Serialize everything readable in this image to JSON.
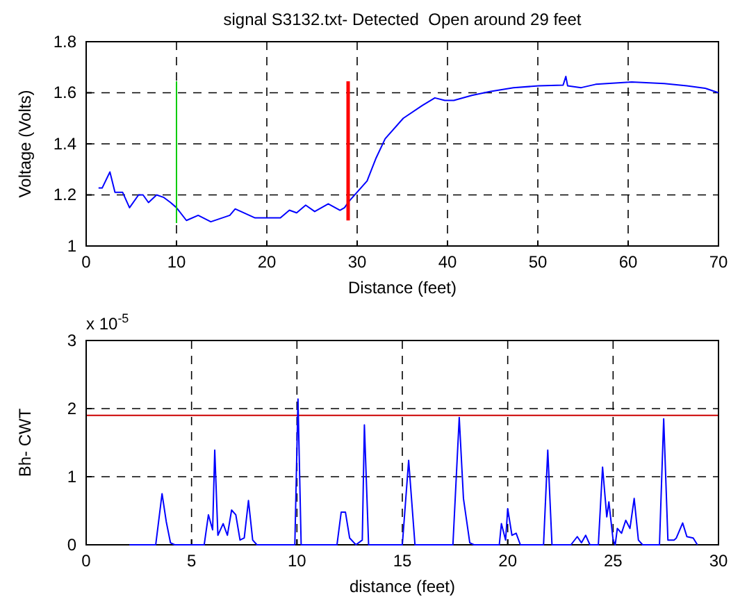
{
  "chart_data": [
    {
      "type": "line",
      "title": "signal S3132.txt- Detected  Open around 29 feet",
      "xlabel": "Distance (feet)",
      "ylabel": "Voltage (Volts)",
      "xlim": [
        0,
        70
      ],
      "xticks": [
        0,
        10,
        20,
        30,
        40,
        50,
        60,
        70
      ],
      "ylim": [
        1,
        1.8
      ],
      "yticks": [
        1,
        1.2,
        1.4,
        1.6,
        1.8
      ],
      "grid": true,
      "line_style": "solid",
      "series": [
        {
          "color": "#0000ff",
          "x": [
            1.37,
            1.77,
            2.63,
            3.19,
            4.04,
            4.8,
            5.8,
            6.3,
            6.9,
            7.8,
            8.6,
            9.35,
            10,
            11.1,
            12.4,
            13.8,
            15.9,
            16.5,
            18.7,
            20,
            21.5,
            22.5,
            23.3,
            24.3,
            25.3,
            26.8,
            28.1,
            28.6,
            29.1,
            31.1,
            32.1,
            33.1,
            35.1,
            37.2,
            38.6,
            39.7,
            40.7,
            42.7,
            44.7,
            47.3,
            50.1,
            52.8,
            53.1,
            53.3,
            54.8,
            56.4,
            60.4,
            64,
            66.5,
            68.5,
            70
          ],
          "values": [
            1.227,
            1.227,
            1.29,
            1.21,
            1.21,
            1.15,
            1.2,
            1.2,
            1.17,
            1.2,
            1.19,
            1.17,
            1.15,
            1.1,
            1.12,
            1.095,
            1.12,
            1.145,
            1.11,
            1.11,
            1.11,
            1.14,
            1.13,
            1.16,
            1.135,
            1.165,
            1.14,
            1.15,
            1.175,
            1.255,
            1.345,
            1.42,
            1.5,
            1.55,
            1.58,
            1.57,
            1.57,
            1.59,
            1.605,
            1.62,
            1.627,
            1.63,
            1.664,
            1.627,
            1.62,
            1.633,
            1.642,
            1.636,
            1.627,
            1.618,
            1.6
          ]
        },
        {
          "color": "#00cc00",
          "x": [
            10,
            10
          ],
          "values": [
            1.09,
            1.645
          ]
        },
        {
          "color": "#ff0000",
          "x": [
            29,
            29
          ],
          "values": [
            1.1,
            1.645
          ]
        }
      ]
    },
    {
      "type": "line",
      "xlabel": "distance (feet)",
      "ylabel": "Bh- CWT",
      "annotations": [
        "x 10$^{-5}$"
      ],
      "xlim": [
        0,
        30
      ],
      "xticks": [
        0,
        5,
        10,
        15,
        20,
        25,
        30
      ],
      "ylim": [
        0,
        3
      ],
      "yticks": [
        0,
        1,
        2,
        3
      ],
      "grid": true,
      "line_style": "solid",
      "ref_lines": [
        {
          "axis": "y",
          "value": 1.9,
          "color": "#cc0000"
        }
      ],
      "series": [
        {
          "color": "#0000ff",
          "x": [
            2.05,
            3.3,
            3.6,
            3.8,
            4.0,
            4.2,
            5.6,
            5.8,
            6.0,
            6.1,
            6.25,
            6.5,
            6.7,
            6.9,
            7.1,
            7.3,
            7.5,
            7.7,
            7.9,
            8.1,
            9.9,
            10.05,
            10.2,
            11.9,
            12.1,
            12.3,
            12.5,
            12.8,
            13.1,
            13.2,
            13.4,
            15.0,
            15.3,
            15.6,
            17.4,
            17.7,
            17.9,
            18.2,
            18.4,
            19.6,
            19.7,
            19.9,
            20.0,
            20.2,
            20.4,
            20.6,
            21.7,
            21.9,
            22.1,
            23.0,
            23.3,
            23.5,
            23.7,
            23.9,
            24.3,
            24.5,
            24.7,
            24.8,
            25.0,
            25.1,
            25.2,
            25.4,
            25.6,
            25.8,
            26.0,
            26.2,
            26.4,
            27.2,
            27.4,
            27.6,
            27.9,
            28.0,
            28.3,
            28.5,
            28.8,
            29.0
          ],
          "values": [
            0,
            0,
            0.75,
            0.34,
            0.03,
            0,
            0,
            0.44,
            0.22,
            1.39,
            0.14,
            0.31,
            0.14,
            0.51,
            0.44,
            0.07,
            0.1,
            0.65,
            0.07,
            0,
            0,
            2.14,
            0,
            0,
            0.48,
            0.48,
            0.1,
            0,
            0.07,
            1.76,
            0,
            0,
            1.24,
            0,
            0,
            1.87,
            0.68,
            0.03,
            0,
            0,
            0.31,
            0.07,
            0.53,
            0.14,
            0.17,
            0,
            0,
            1.39,
            0,
            0,
            0.12,
            0.03,
            0.14,
            0,
            0,
            1.14,
            0.41,
            0.63,
            0.07,
            0,
            0.24,
            0.17,
            0.36,
            0.24,
            0.68,
            0.07,
            0,
            0,
            1.85,
            0.07,
            0.07,
            0.1,
            0.32,
            0.12,
            0.1,
            0
          ]
        }
      ]
    }
  ]
}
